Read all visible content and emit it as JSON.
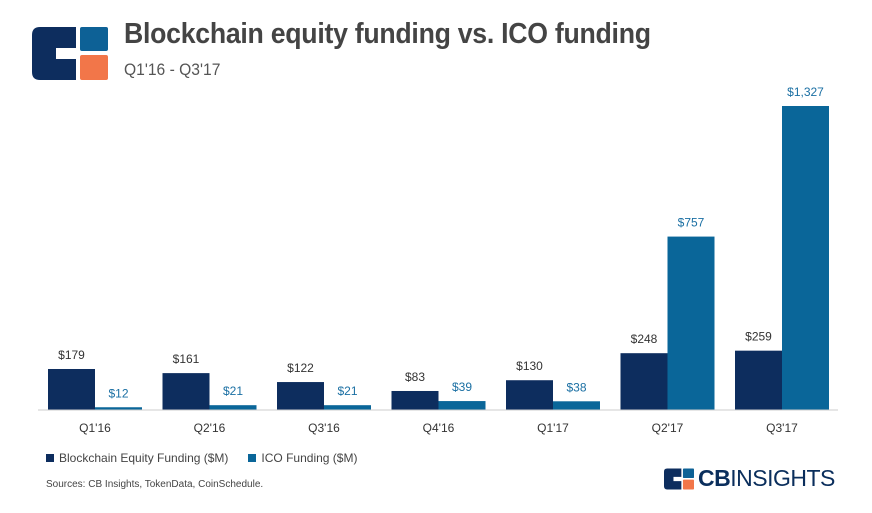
{
  "header": {
    "title": "Blockchain equity funding vs. ICO funding",
    "subtitle": "Q1'16 - Q3'17"
  },
  "colors": {
    "equity": "#0d2d5e",
    "ico": "#0a6699",
    "logo_blue": "#0d6196",
    "logo_dark": "#0d2d5e",
    "logo_orange": "#f27649"
  },
  "chart_data": {
    "type": "bar",
    "categories": [
      "Q1'16",
      "Q2'16",
      "Q3'16",
      "Q4'16",
      "Q1'17",
      "Q2'17",
      "Q3'17"
    ],
    "series": [
      {
        "name": "Blockchain Equity Funding ($M)",
        "values": [
          179,
          161,
          122,
          83,
          130,
          248,
          259
        ],
        "labels": [
          "$179",
          "$161",
          "$122",
          "$83",
          "$130",
          "$248",
          "$259"
        ]
      },
      {
        "name": "ICO Funding ($M)",
        "values": [
          12,
          21,
          21,
          39,
          38,
          757,
          1327
        ],
        "labels": [
          "$12",
          "$21",
          "$21",
          "$39",
          "$38",
          "$757",
          "$1,327"
        ]
      }
    ],
    "title": "Blockchain equity funding vs. ICO funding",
    "subtitle": "Q1'16 - Q3'17",
    "xlabel": "",
    "ylabel": "",
    "ylim": [
      0,
      1327
    ],
    "legend_position": "bottom-left",
    "grid": false
  },
  "legend": {
    "equity_label": "Blockchain Equity Funding ($M)",
    "ico_label": "ICO Funding ($M)"
  },
  "footer": {
    "source": "Sources: CB Insights, TokenData, CoinSchedule.",
    "brand_cb": "CB",
    "brand_insights": "INSIGHTS"
  }
}
